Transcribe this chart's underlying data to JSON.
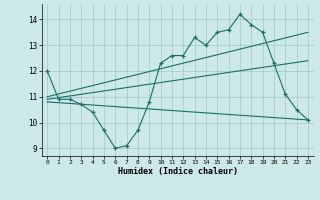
{
  "xlabel": "Humidex (Indice chaleur)",
  "bg_color": "#cde8e8",
  "grid_color": "#a0c8c8",
  "line_color": "#1a6e64",
  "xlim": [
    -0.5,
    23.5
  ],
  "ylim": [
    8.7,
    14.6
  ],
  "yticks": [
    9,
    10,
    11,
    12,
    13,
    14
  ],
  "xticks": [
    0,
    1,
    2,
    3,
    4,
    5,
    6,
    7,
    8,
    9,
    10,
    11,
    12,
    13,
    14,
    15,
    16,
    17,
    18,
    19,
    20,
    21,
    22,
    23
  ],
  "line1_x": [
    0,
    1,
    2,
    3,
    4,
    5,
    6,
    7,
    8,
    9,
    10,
    11,
    12,
    13,
    14,
    15,
    16,
    17,
    18,
    19,
    20,
    21,
    22,
    23
  ],
  "line1_y": [
    12.0,
    10.9,
    10.9,
    10.7,
    10.4,
    9.7,
    9.0,
    9.1,
    9.7,
    10.8,
    12.3,
    12.6,
    12.6,
    13.3,
    13.0,
    13.5,
    13.6,
    14.2,
    13.8,
    13.5,
    12.3,
    11.1,
    10.5,
    10.1
  ],
  "line2_x": [
    0,
    23
  ],
  "line2_y": [
    11.0,
    13.5
  ],
  "line3_x": [
    0,
    23
  ],
  "line3_y": [
    10.9,
    12.4
  ],
  "line4_x": [
    0,
    23
  ],
  "line4_y": [
    10.8,
    10.1
  ],
  "line4_markers_x": [
    0,
    10,
    15,
    18,
    20,
    21,
    22,
    23
  ],
  "line4_markers_y": [
    10.8,
    10.3,
    10.2,
    10.2,
    10.2,
    10.2,
    10.1,
    10.1
  ]
}
